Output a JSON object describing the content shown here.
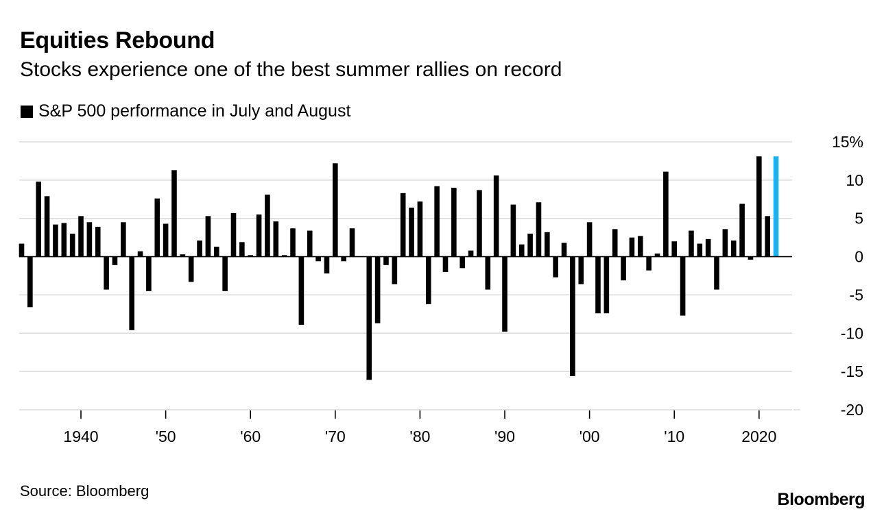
{
  "header": {
    "title": "Equities Rebound",
    "subtitle": "Stocks experience one of the best summer rallies on record"
  },
  "legend": {
    "label": "S&P 500 performance in July and August",
    "swatch_icon": "black-square-icon"
  },
  "footer": {
    "source": "Source: Bloomberg",
    "brand": "Bloomberg"
  },
  "colors": {
    "bar": "#000000",
    "highlight": "#1ab2f0",
    "grid": "#d9d9d9"
  },
  "chart_data": {
    "type": "bar",
    "title": "Equities Rebound",
    "subtitle": "Stocks experience one of the best summer rallies on record",
    "series_name": "S&P 500 performance in July and August",
    "unit": "%",
    "ylim": [
      -20,
      15
    ],
    "yticks": [
      15,
      10,
      5,
      0,
      -5,
      -10,
      -15,
      -20
    ],
    "ytick_labels": [
      "15%",
      "10",
      "5",
      "0",
      "-5",
      "-10",
      "-15",
      "-20"
    ],
    "xlim": [
      1933,
      2022
    ],
    "xticks": [
      1940,
      1950,
      1960,
      1970,
      1980,
      1990,
      2000,
      2010,
      2020
    ],
    "xtick_labels": [
      "1940",
      "'50",
      "'60",
      "'70",
      "'80",
      "'90",
      "'00",
      "'10",
      "2020"
    ],
    "highlight_year": 2022,
    "years": [
      1933,
      1934,
      1935,
      1936,
      1937,
      1938,
      1939,
      1940,
      1941,
      1942,
      1943,
      1944,
      1945,
      1946,
      1947,
      1948,
      1949,
      1950,
      1951,
      1952,
      1953,
      1954,
      1955,
      1956,
      1957,
      1958,
      1959,
      1960,
      1961,
      1962,
      1963,
      1964,
      1965,
      1966,
      1967,
      1968,
      1969,
      1970,
      1971,
      1972,
      1973,
      1974,
      1975,
      1976,
      1977,
      1978,
      1979,
      1980,
      1981,
      1982,
      1983,
      1984,
      1985,
      1986,
      1987,
      1988,
      1989,
      1990,
      1991,
      1992,
      1993,
      1994,
      1995,
      1996,
      1997,
      1998,
      1999,
      2000,
      2001,
      2002,
      2003,
      2004,
      2005,
      2006,
      2007,
      2008,
      2009,
      2010,
      2011,
      2012,
      2013,
      2014,
      2015,
      2016,
      2017,
      2018,
      2019,
      2020,
      2021,
      2022
    ],
    "values": [
      1.7,
      -6.6,
      9.8,
      7.9,
      4.2,
      4.4,
      3.0,
      5.3,
      4.5,
      3.9,
      -4.3,
      -1.1,
      4.5,
      -9.6,
      0.7,
      -4.5,
      7.6,
      4.3,
      11.3,
      0.3,
      -3.3,
      2.1,
      5.3,
      1.3,
      -4.5,
      5.7,
      1.9,
      0.2,
      5.5,
      8.1,
      4.6,
      0.2,
      3.7,
      -8.9,
      3.4,
      -0.6,
      -2.2,
      12.2,
      -0.6,
      3.7,
      0.0,
      -16.1,
      -8.7,
      -1.1,
      -3.6,
      8.3,
      6.4,
      7.2,
      -6.2,
      9.2,
      -2.0,
      9.0,
      -1.5,
      0.8,
      8.7,
      -4.3,
      10.6,
      -9.8,
      6.8,
      1.6,
      3.0,
      7.1,
      3.2,
      -2.7,
      1.8,
      -15.6,
      -3.6,
      4.5,
      -7.4,
      -7.4,
      3.6,
      -3.1,
      2.5,
      2.7,
      -1.8,
      0.4,
      11.1,
      2.0,
      -7.7,
      3.4,
      1.7,
      2.3,
      -4.3,
      3.6,
      2.1,
      6.9,
      -0.4,
      13.1,
      5.3,
      13.1
    ]
  }
}
